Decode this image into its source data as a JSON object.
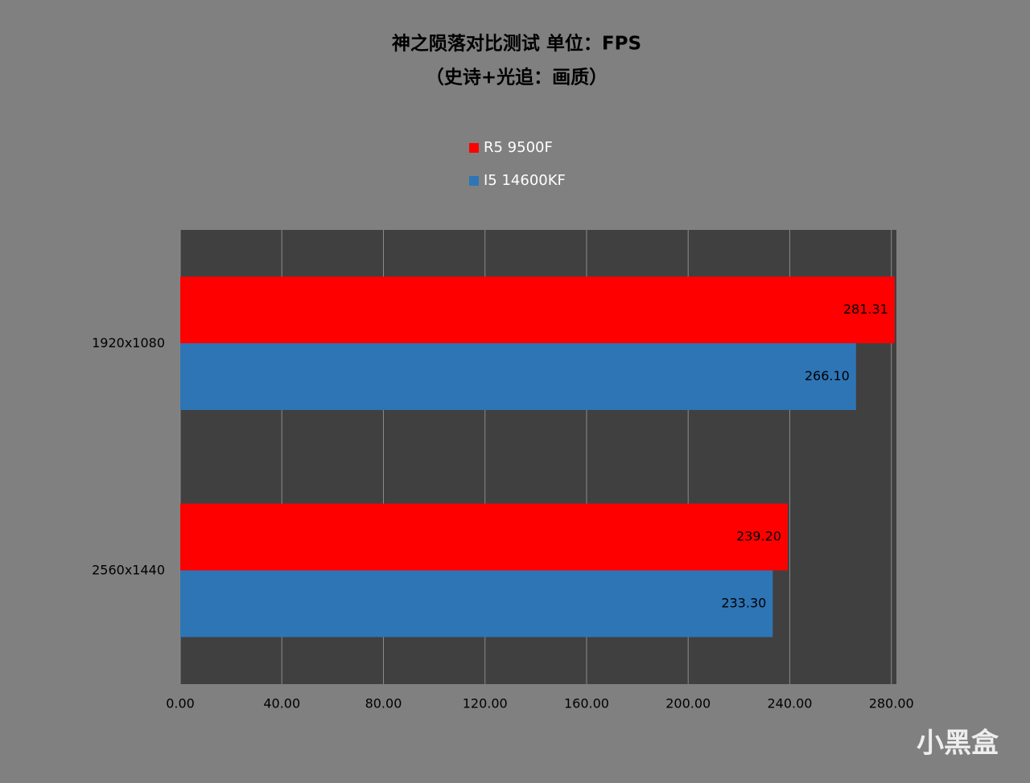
{
  "chart_data": {
    "type": "hbar",
    "title": "神之陨落对比测试 单位：FPS",
    "subtitle": "（史诗+光追：画质）",
    "categories": [
      "1920x1080",
      "2560x1440"
    ],
    "series": [
      {
        "name": "R5 9500F",
        "color": "#ff0000",
        "values": [
          281.31,
          239.2
        ],
        "value_labels": [
          "281.31",
          "239.20"
        ]
      },
      {
        "name": "I5 14600KF",
        "color": "#2e75b6",
        "values": [
          266.1,
          233.3
        ],
        "value_labels": [
          "266.10",
          "233.30"
        ]
      }
    ],
    "xlim": [
      0,
      282
    ],
    "xticks": [
      {
        "value": 0,
        "label": "0.00"
      },
      {
        "value": 40,
        "label": "40.00"
      },
      {
        "value": 80,
        "label": "80.00"
      },
      {
        "value": 120,
        "label": "120.00"
      },
      {
        "value": 160,
        "label": "160.00"
      },
      {
        "value": 200,
        "label": "200.00"
      },
      {
        "value": 240,
        "label": "240.00"
      },
      {
        "value": 280,
        "label": "280.00"
      }
    ],
    "grid": true,
    "legend": "top",
    "watermark": "小黑盒"
  }
}
